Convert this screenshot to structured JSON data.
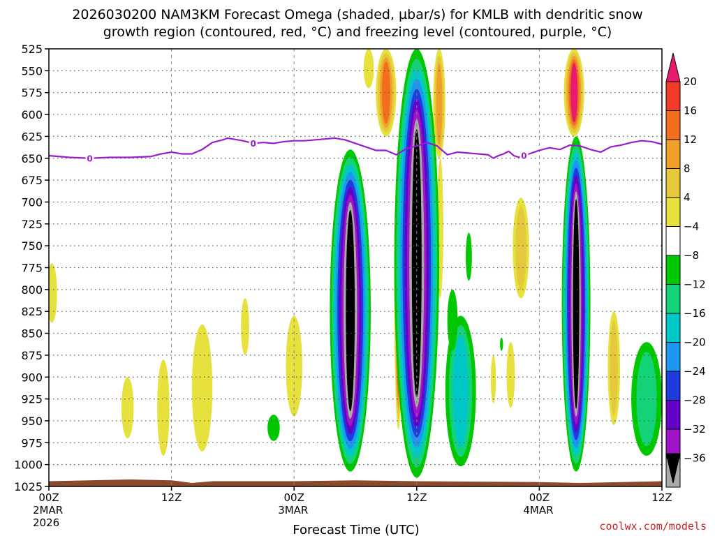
{
  "title": {
    "line1": "2026030200 NAM3KM Forecast Omega (shaded, µbar/s) for KMLB with dendritic snow",
    "line2": "growth region (contoured, red, °C) and freezing level (contoured, purple, °C)"
  },
  "credit": "coolwx.com/models",
  "colors": {
    "freezing_line": "#9a1ccc",
    "ground": "#8b4a2b",
    "credit": "#cc2222",
    "grid": "#555555"
  },
  "chart_data": {
    "type": "heatmap",
    "xlabel": "Forecast Time (UTC)",
    "ylabel": "",
    "x_range_hours": [
      0,
      60
    ],
    "y_range_mb": [
      525,
      1025
    ],
    "y_axis_inverted": true,
    "grid": true,
    "y_ticks": [
      525,
      550,
      575,
      600,
      625,
      650,
      675,
      700,
      725,
      750,
      775,
      800,
      825,
      850,
      875,
      900,
      925,
      950,
      975,
      1000,
      1025
    ],
    "x_ticks": [
      {
        "hour": 0,
        "label": "00Z",
        "sub1": "2MAR",
        "sub2": "2026"
      },
      {
        "hour": 12,
        "label": "12Z",
        "sub1": "",
        "sub2": ""
      },
      {
        "hour": 24,
        "label": "00Z",
        "sub1": "3MAR",
        "sub2": ""
      },
      {
        "hour": 36,
        "label": "12Z",
        "sub1": "",
        "sub2": ""
      },
      {
        "hour": 48,
        "label": "00Z",
        "sub1": "4MAR",
        "sub2": ""
      },
      {
        "hour": 60,
        "label": "12Z",
        "sub1": "",
        "sub2": ""
      }
    ],
    "colorbar": {
      "labels": [
        "20",
        "16",
        "12",
        "8",
        "4",
        "−4",
        "−8",
        "−12",
        "−16",
        "−20",
        "−24",
        "−28",
        "−32",
        "−36"
      ],
      "colors": [
        "#e8196e",
        "#f03c28",
        "#f06e1e",
        "#f0a028",
        "#e6c83c",
        "#e6e13c",
        "#ffffff",
        "#00c800",
        "#14d278",
        "#00c8c8",
        "#1e96f0",
        "#1e3cdc",
        "#6400c8",
        "#a014c8",
        "#aaaaaa",
        "#000000"
      ]
    },
    "freezing_level": {
      "label": "0",
      "units": "°C",
      "points": [
        [
          0,
          647
        ],
        [
          2,
          649
        ],
        [
          4,
          650
        ],
        [
          6,
          649
        ],
        [
          8,
          649
        ],
        [
          10,
          648
        ],
        [
          11,
          645
        ],
        [
          12,
          643
        ],
        [
          13,
          645
        ],
        [
          14,
          645
        ],
        [
          15,
          640
        ],
        [
          15.5,
          636
        ],
        [
          16,
          632
        ],
        [
          17,
          629
        ],
        [
          17.5,
          627
        ],
        [
          18,
          628
        ],
        [
          19,
          630
        ],
        [
          20,
          633
        ],
        [
          21,
          632
        ],
        [
          22,
          633
        ],
        [
          23,
          631
        ],
        [
          24,
          630
        ],
        [
          25,
          630
        ],
        [
          26,
          629
        ],
        [
          27,
          628
        ],
        [
          28,
          627
        ],
        [
          29,
          629
        ],
        [
          30,
          633
        ],
        [
          31,
          637
        ],
        [
          32,
          641
        ],
        [
          33,
          641
        ],
        [
          34,
          646
        ],
        [
          35,
          639
        ],
        [
          36,
          636
        ],
        [
          37,
          632
        ],
        [
          38,
          636
        ],
        [
          39,
          646
        ],
        [
          40,
          643
        ],
        [
          41,
          644
        ],
        [
          42,
          645
        ],
        [
          43,
          646
        ],
        [
          43.5,
          650
        ],
        [
          44,
          647
        ],
        [
          44.5,
          645
        ],
        [
          45,
          642
        ],
        [
          45.5,
          647
        ],
        [
          46,
          649
        ],
        [
          46.5,
          647
        ],
        [
          47,
          645
        ],
        [
          48,
          641
        ],
        [
          49,
          638
        ],
        [
          50,
          640
        ],
        [
          51,
          635
        ],
        [
          52,
          636
        ],
        [
          53,
          640
        ],
        [
          54,
          643
        ],
        [
          55,
          637
        ],
        [
          56,
          635
        ],
        [
          57,
          632
        ],
        [
          58,
          630
        ],
        [
          59,
          631
        ],
        [
          60,
          634
        ]
      ],
      "label_positions": [
        [
          4,
          650
        ],
        [
          20,
          633
        ],
        [
          46.5,
          647
        ]
      ]
    },
    "omega_features": [
      {
        "center_hour": 0.3,
        "top_mb": 770,
        "bottom_mb": 838,
        "half_width_hours": 0.5,
        "peak": 4
      },
      {
        "center_hour": 7.7,
        "top_mb": 900,
        "bottom_mb": 970,
        "half_width_hours": 0.6,
        "peak": 4
      },
      {
        "center_hour": 11.2,
        "top_mb": 880,
        "bottom_mb": 990,
        "half_width_hours": 0.6,
        "peak": 4
      },
      {
        "center_hour": 15.0,
        "top_mb": 840,
        "bottom_mb": 985,
        "half_width_hours": 1.0,
        "peak": 4
      },
      {
        "center_hour": 19.2,
        "top_mb": 810,
        "bottom_mb": 875,
        "half_width_hours": 0.4,
        "peak": 4
      },
      {
        "center_hour": 24.0,
        "top_mb": 830,
        "bottom_mb": 945,
        "half_width_hours": 0.8,
        "peak": 6
      },
      {
        "center_hour": 29.8,
        "top_mb": 870,
        "bottom_mb": 950,
        "half_width_hours": 0.3,
        "peak": 4
      },
      {
        "center_hour": 31.3,
        "top_mb": 525,
        "bottom_mb": 570,
        "half_width_hours": 0.5,
        "peak": 6
      },
      {
        "center_hour": 33.0,
        "top_mb": 525,
        "bottom_mb": 625,
        "half_width_hours": 1.0,
        "peak": 16
      },
      {
        "center_hour": 34.2,
        "top_mb": 650,
        "bottom_mb": 960,
        "half_width_hours": 0.4,
        "peak": 20
      },
      {
        "center_hour": 38.2,
        "top_mb": 525,
        "bottom_mb": 650,
        "half_width_hours": 0.6,
        "peak": 12
      },
      {
        "center_hour": 38.3,
        "top_mb": 650,
        "bottom_mb": 810,
        "half_width_hours": 0.3,
        "peak": 6
      },
      {
        "center_hour": 43.5,
        "top_mb": 875,
        "bottom_mb": 930,
        "half_width_hours": 0.25,
        "peak": 4
      },
      {
        "center_hour": 45.2,
        "top_mb": 860,
        "bottom_mb": 935,
        "half_width_hours": 0.4,
        "peak": 4
      },
      {
        "center_hour": 46.2,
        "top_mb": 695,
        "bottom_mb": 810,
        "half_width_hours": 0.8,
        "peak": 8
      },
      {
        "center_hour": 51.4,
        "top_mb": 525,
        "bottom_mb": 625,
        "half_width_hours": 1.0,
        "peak": 20
      },
      {
        "center_hour": 55.3,
        "top_mb": 825,
        "bottom_mb": 955,
        "half_width_hours": 0.6,
        "peak": 10
      },
      {
        "center_hour": 29.5,
        "top_mb": 640,
        "bottom_mb": 1008,
        "half_width_hours": 2.0,
        "peak": -40
      },
      {
        "center_hour": 36.0,
        "top_mb": 525,
        "bottom_mb": 1015,
        "half_width_hours": 2.2,
        "peak": -60
      },
      {
        "center_hour": 51.6,
        "top_mb": 625,
        "bottom_mb": 1008,
        "half_width_hours": 1.4,
        "peak": -44
      },
      {
        "center_hour": 40.3,
        "top_mb": 830,
        "bottom_mb": 1002,
        "half_width_hours": 1.5,
        "peak": -14
      },
      {
        "center_hour": 39.5,
        "top_mb": 800,
        "bottom_mb": 870,
        "half_width_hours": 0.5,
        "peak": -6
      },
      {
        "center_hour": 41.1,
        "top_mb": 735,
        "bottom_mb": 790,
        "half_width_hours": 0.3,
        "peak": -6
      },
      {
        "center_hour": 22.0,
        "top_mb": 943,
        "bottom_mb": 973,
        "half_width_hours": 0.6,
        "peak": -6
      },
      {
        "center_hour": 58.5,
        "top_mb": 860,
        "bottom_mb": 990,
        "half_width_hours": 1.5,
        "peak": -10
      },
      {
        "center_hour": 44.3,
        "top_mb": 855,
        "bottom_mb": 870,
        "half_width_hours": 0.15,
        "peak": -6
      }
    ],
    "ground_pressure_mb": [
      [
        0,
        1019
      ],
      [
        8,
        1017
      ],
      [
        12,
        1018
      ],
      [
        14,
        1021
      ],
      [
        16,
        1019
      ],
      [
        24,
        1019
      ],
      [
        30,
        1018
      ],
      [
        36,
        1019
      ],
      [
        48,
        1020
      ],
      [
        52,
        1021
      ],
      [
        60,
        1019
      ]
    ]
  }
}
